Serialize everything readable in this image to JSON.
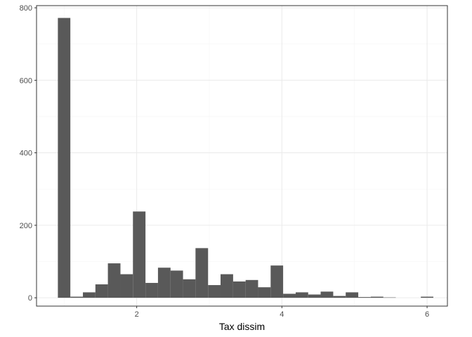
{
  "chart_data": {
    "type": "bar",
    "subtype": "histogram",
    "title": "",
    "xlabel": "Tax dissim",
    "ylabel": "",
    "xlim": [
      0.62,
      6.28
    ],
    "ylim": [
      -23,
      806
    ],
    "x_ticks": [
      2,
      4,
      6
    ],
    "y_ticks": [
      0,
      200,
      400,
      600,
      800
    ],
    "x_tick_labels": [
      "2",
      "4",
      "6"
    ],
    "y_tick_labels": [
      "0",
      "200",
      "400",
      "600",
      "800"
    ],
    "grid": true,
    "legend": "none",
    "bin_width": 0.1724,
    "bins": [
      {
        "x0": 0.914,
        "x1": 1.086,
        "count": 772
      },
      {
        "x0": 1.086,
        "x1": 1.259,
        "count": 3
      },
      {
        "x0": 1.259,
        "x1": 1.431,
        "count": 15
      },
      {
        "x0": 1.431,
        "x1": 1.603,
        "count": 37
      },
      {
        "x0": 1.603,
        "x1": 1.776,
        "count": 95
      },
      {
        "x0": 1.776,
        "x1": 1.948,
        "count": 65
      },
      {
        "x0": 1.948,
        "x1": 2.121,
        "count": 238
      },
      {
        "x0": 2.121,
        "x1": 2.293,
        "count": 41
      },
      {
        "x0": 2.293,
        "x1": 2.466,
        "count": 83
      },
      {
        "x0": 2.466,
        "x1": 2.638,
        "count": 75
      },
      {
        "x0": 2.638,
        "x1": 2.81,
        "count": 51
      },
      {
        "x0": 2.81,
        "x1": 2.983,
        "count": 137
      },
      {
        "x0": 2.983,
        "x1": 3.155,
        "count": 35
      },
      {
        "x0": 3.155,
        "x1": 3.328,
        "count": 65
      },
      {
        "x0": 3.328,
        "x1": 3.5,
        "count": 45
      },
      {
        "x0": 3.5,
        "x1": 3.672,
        "count": 49
      },
      {
        "x0": 3.672,
        "x1": 3.845,
        "count": 29
      },
      {
        "x0": 3.845,
        "x1": 4.017,
        "count": 89
      },
      {
        "x0": 4.017,
        "x1": 4.19,
        "count": 11
      },
      {
        "x0": 4.19,
        "x1": 4.362,
        "count": 15
      },
      {
        "x0": 4.362,
        "x1": 4.534,
        "count": 9
      },
      {
        "x0": 4.534,
        "x1": 4.707,
        "count": 17
      },
      {
        "x0": 4.707,
        "x1": 4.879,
        "count": 5
      },
      {
        "x0": 4.879,
        "x1": 5.052,
        "count": 15
      },
      {
        "x0": 5.052,
        "x1": 5.224,
        "count": 2
      },
      {
        "x0": 5.224,
        "x1": 5.397,
        "count": 3
      },
      {
        "x0": 5.397,
        "x1": 5.569,
        "count": 1
      },
      {
        "x0": 5.569,
        "x1": 5.741,
        "count": 0
      },
      {
        "x0": 5.741,
        "x1": 5.914,
        "count": 0
      },
      {
        "x0": 5.914,
        "x1": 6.086,
        "count": 3
      }
    ],
    "colors": {
      "bar_fill": "#595959",
      "panel_border": "#333333",
      "grid_major": "#ebebeb",
      "grid_minor": "#f5f5f5",
      "tick_text": "#4d4d4d",
      "axis_title": "#000000",
      "background": "#ffffff"
    }
  }
}
